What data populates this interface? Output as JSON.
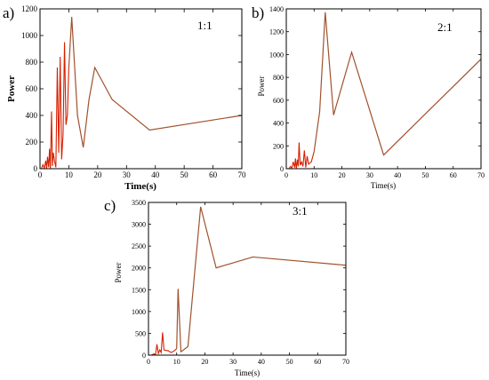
{
  "panels": [
    {
      "letter": "a)",
      "ratio": "1:1",
      "xlabel": "Time(s)",
      "ylabel": "Power"
    },
    {
      "letter": "b)",
      "ratio": "2:1",
      "xlabel": "Time(s)",
      "ylabel": "Power"
    },
    {
      "letter": "c)",
      "ratio": "3:1",
      "xlabel": "Time(s)",
      "ylabel": "Power"
    }
  ],
  "line_color": "#a0522d",
  "spike_color": "#d62000",
  "chart_data": [
    {
      "type": "line",
      "title": "",
      "xlabel": "Time(s)",
      "ylabel": "Power",
      "xlim": [
        0,
        70
      ],
      "ylim": [
        0,
        1200
      ],
      "xticks": [
        0,
        10,
        20,
        30,
        40,
        50,
        60,
        70
      ],
      "yticks": [
        0,
        200,
        400,
        600,
        800,
        1000,
        1200
      ],
      "grid": false,
      "x": [
        0.5,
        1,
        1.5,
        2,
        2.3,
        2.6,
        3,
        3.3,
        3.6,
        4,
        4.3,
        4.6,
        5,
        5.5,
        6,
        6.5,
        7,
        7.5,
        8,
        8.5,
        9,
        9.5,
        10,
        11,
        13,
        15,
        17,
        19,
        25,
        38,
        70
      ],
      "y": [
        0,
        30,
        5,
        60,
        0,
        90,
        10,
        150,
        0,
        430,
        20,
        120,
        60,
        10,
        760,
        120,
        840,
        70,
        260,
        950,
        330,
        400,
        760,
        1140,
        400,
        160,
        520,
        760,
        520,
        290,
        400
      ]
    },
    {
      "type": "line",
      "title": "",
      "xlabel": "Time(s)",
      "ylabel": "Power",
      "xlim": [
        0,
        70
      ],
      "ylim": [
        0,
        1400
      ],
      "xticks": [
        0,
        10,
        20,
        30,
        40,
        50,
        60,
        70
      ],
      "yticks": [
        0,
        200,
        400,
        600,
        800,
        1000,
        1200,
        1400
      ],
      "grid": false,
      "x": [
        1,
        1.5,
        2,
        2.5,
        3,
        3.3,
        3.6,
        4,
        4.3,
        4.6,
        5,
        5.5,
        6,
        6.5,
        7,
        7.5,
        8,
        9,
        10,
        12,
        14,
        17,
        23.5,
        35,
        70
      ],
      "y": [
        0,
        20,
        5,
        60,
        10,
        90,
        0,
        80,
        20,
        230,
        30,
        60,
        20,
        160,
        10,
        110,
        40,
        60,
        150,
        500,
        1370,
        470,
        1020,
        120,
        960
      ]
    },
    {
      "type": "line",
      "title": "",
      "xlabel": "Time(s)",
      "ylabel": "Power",
      "xlim": [
        0,
        70
      ],
      "ylim": [
        0,
        3500
      ],
      "xticks": [
        0,
        10,
        20,
        30,
        40,
        50,
        60,
        70
      ],
      "yticks": [
        0,
        500,
        1000,
        1500,
        2000,
        2500,
        3000,
        3500
      ],
      "grid": false,
      "x": [
        1,
        2,
        2.5,
        3,
        3.5,
        4,
        4.5,
        5,
        5.5,
        6,
        7,
        8,
        9,
        10,
        10.5,
        11.5,
        12,
        14,
        18.5,
        24,
        37,
        70
      ],
      "y": [
        0,
        30,
        10,
        250,
        40,
        120,
        60,
        520,
        120,
        110,
        100,
        60,
        90,
        150,
        1520,
        80,
        100,
        200,
        3400,
        2000,
        2250,
        2060
      ]
    }
  ]
}
